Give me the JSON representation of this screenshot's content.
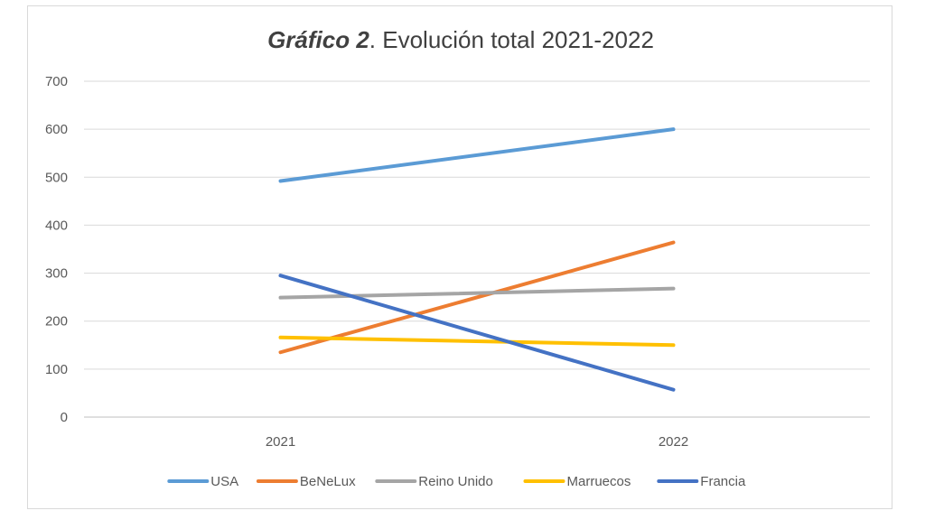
{
  "chart_data": {
    "type": "line",
    "title_prefix": "Gráfico 2",
    "title_suffix": ". Evolución total 2021-2022",
    "categories": [
      "2021",
      "2022"
    ],
    "ylim": [
      0,
      700
    ],
    "yticks": [
      0,
      100,
      200,
      300,
      400,
      500,
      600,
      700
    ],
    "grid": true,
    "legend_position": "bottom",
    "series": [
      {
        "name": "USA",
        "values": [
          492,
          600
        ],
        "color": "#5b9bd5"
      },
      {
        "name": "BeNeLux",
        "values": [
          135,
          364
        ],
        "color": "#ed7d31"
      },
      {
        "name": "Reino Unido",
        "values": [
          249,
          268
        ],
        "color": "#a5a5a5"
      },
      {
        "name": "Marruecos",
        "values": [
          166,
          150
        ],
        "color": "#ffc000"
      },
      {
        "name": "Francia",
        "values": [
          295,
          57
        ],
        "color": "#4472c4"
      }
    ]
  }
}
